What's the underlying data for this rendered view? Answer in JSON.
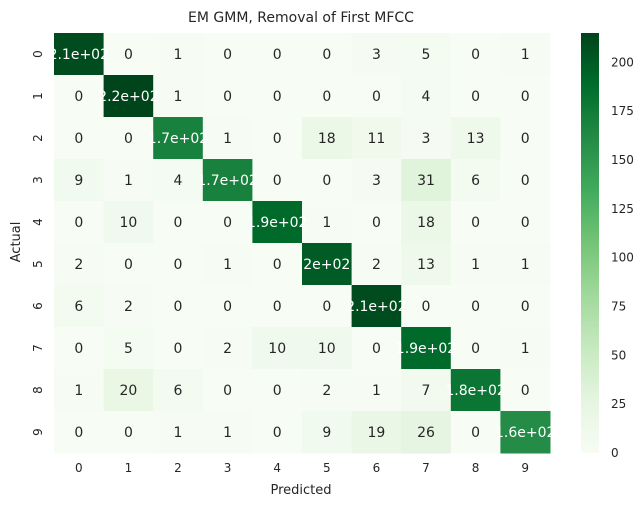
{
  "chart_data": {
    "type": "heatmap",
    "title": "EM GMM, Removal of First MFCC",
    "xlabel": "Predicted",
    "ylabel": "Actual",
    "x_categories": [
      "0",
      "1",
      "2",
      "3",
      "4",
      "5",
      "6",
      "7",
      "8",
      "9"
    ],
    "y_categories": [
      "0",
      "1",
      "2",
      "3",
      "4",
      "5",
      "6",
      "7",
      "8",
      "9"
    ],
    "values": [
      [
        210,
        0,
        1,
        0,
        0,
        0,
        3,
        5,
        0,
        1
      ],
      [
        0,
        220,
        1,
        0,
        0,
        0,
        0,
        4,
        0,
        0
      ],
      [
        0,
        0,
        170,
        1,
        0,
        18,
        11,
        3,
        13,
        0
      ],
      [
        9,
        1,
        4,
        170,
        0,
        0,
        3,
        31,
        6,
        0
      ],
      [
        0,
        10,
        0,
        0,
        190,
        1,
        0,
        18,
        0,
        0
      ],
      [
        2,
        0,
        0,
        1,
        0,
        200,
        2,
        13,
        1,
        1
      ],
      [
        6,
        2,
        0,
        0,
        0,
        0,
        210,
        0,
        0,
        0
      ],
      [
        0,
        5,
        0,
        2,
        10,
        10,
        0,
        190,
        0,
        1
      ],
      [
        1,
        20,
        6,
        0,
        0,
        2,
        1,
        7,
        180,
        0
      ],
      [
        0,
        0,
        1,
        1,
        0,
        9,
        19,
        26,
        0,
        160
      ]
    ],
    "annotations": [
      [
        "2.1e+02",
        "0",
        "1",
        "0",
        "0",
        "0",
        "3",
        "5",
        "0",
        "1"
      ],
      [
        "0",
        "2.2e+02",
        "1",
        "0",
        "0",
        "0",
        "0",
        "4",
        "0",
        "0"
      ],
      [
        "0",
        "0",
        "1.7e+02",
        "1",
        "0",
        "18",
        "11",
        "3",
        "13",
        "0"
      ],
      [
        "9",
        "1",
        "4",
        "1.7e+02",
        "0",
        "0",
        "3",
        "31",
        "6",
        "0"
      ],
      [
        "0",
        "10",
        "0",
        "0",
        "1.9e+02",
        "1",
        "0",
        "18",
        "0",
        "0"
      ],
      [
        "2",
        "0",
        "0",
        "1",
        "0",
        "2e+02",
        "2",
        "13",
        "1",
        "1"
      ],
      [
        "6",
        "2",
        "0",
        "0",
        "0",
        "0",
        "2.1e+02",
        "0",
        "0",
        "0"
      ],
      [
        "0",
        "5",
        "0",
        "2",
        "10",
        "10",
        "0",
        "1.9e+02",
        "0",
        "1"
      ],
      [
        "1",
        "20",
        "6",
        "0",
        "0",
        "2",
        "1",
        "7",
        "1.8e+02",
        "0"
      ],
      [
        "0",
        "0",
        "1",
        "1",
        "0",
        "9",
        "19",
        "26",
        "0",
        "1.6e+02"
      ]
    ],
    "vmin": 0,
    "vmax": 215,
    "colorbar_ticks": [
      0,
      25,
      50,
      75,
      100,
      125,
      150,
      175,
      200
    ],
    "colormap": "Greens",
    "colormap_stops": [
      "#f7fcf5",
      "#e5f5e0",
      "#c7e9c0",
      "#a1d99b",
      "#74c476",
      "#41ab5d",
      "#238b45",
      "#006d2c",
      "#00441b"
    ],
    "annotation_dark_text": "#262626",
    "annotation_light_text": "#ffffff"
  }
}
